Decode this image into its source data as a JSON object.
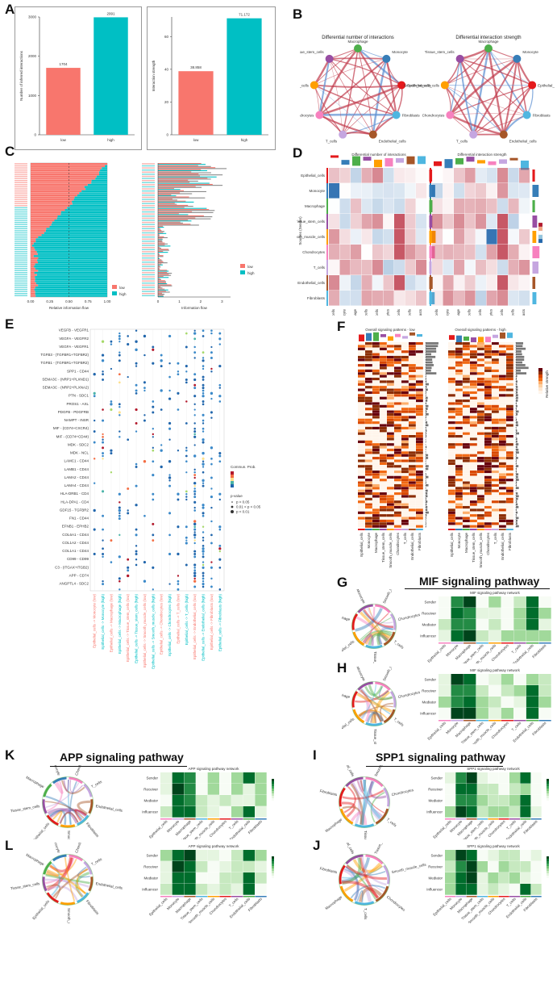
{
  "panels": {
    "A": "A",
    "B": "B",
    "C": "C",
    "D": "D",
    "E": "E",
    "F": "F",
    "G": "G",
    "H": "H",
    "I": "I",
    "J": "J",
    "K": "K",
    "L": "L"
  },
  "chart_data": [
    {
      "id": "A-left",
      "type": "bar",
      "categories": [
        "low",
        "high"
      ],
      "values": [
        1704,
        2991
      ],
      "value_labels": [
        "1704",
        "2991"
      ],
      "ylabel": "Number of inferred interactions",
      "ylim": [
        0,
        3000
      ],
      "yticks": [
        "0",
        "1000",
        "2000",
        "3000"
      ],
      "colors": [
        "#f8766d",
        "#00bfc4"
      ]
    },
    {
      "id": "A-right",
      "type": "bar",
      "categories": [
        "low",
        "high"
      ],
      "values": [
        38.858,
        71.172
      ],
      "value_labels": [
        "38.858",
        "71.172"
      ],
      "ylabel": "Interaction strength",
      "ylim": [
        0,
        72
      ],
      "yticks": [
        "0",
        "20",
        "40",
        "60"
      ],
      "colors": [
        "#f8766d",
        "#00bfc4"
      ]
    }
  ],
  "B": {
    "left_title": "Differential number of interactions",
    "right_title": "Differential interaction strength",
    "nodes": [
      {
        "label": "Macrophage",
        "color": "#4daf4a"
      },
      {
        "label": "Monocyte",
        "color": "#377eb8"
      },
      {
        "label": "Epithelial_cells",
        "color": "#e41a1c"
      },
      {
        "label": "Fibroblasts",
        "color": "#4fb6e0"
      },
      {
        "label": "Endothelial_cells",
        "color": "#a65628"
      },
      {
        "label": "T_cells",
        "color": "#c5a6e0"
      },
      {
        "label": "Chondrocytes",
        "color": "#f781bf"
      },
      {
        "label": "Smooth_muscle_cells",
        "color": "#ff9f00"
      },
      {
        "label": "Tissue_stem_cells",
        "color": "#984ea3"
      }
    ]
  },
  "C": {
    "xlabel_left": "Relative information flow",
    "xlabel_right": "Information flow",
    "xticks_left": [
      "0.00",
      "0.25",
      "0.50",
      "0.75",
      "1.00"
    ],
    "xticks_right": [
      "0",
      "1",
      "2",
      "3"
    ],
    "legend": [
      {
        "label": "low",
        "color": "#f8766d"
      },
      {
        "label": "high",
        "color": "#00bfc4"
      }
    ]
  },
  "D": {
    "left_title": "Differential number of interactions",
    "right_title": "Differential interaction strength",
    "ylabel": "Sources (Sender)",
    "rows": [
      "Epithelial_cells",
      "Monocyte",
      "Macrophage",
      "Tissue_stem_cells",
      "Smooth_muscle_cells",
      "Chondrocytes",
      "T_cells",
      "Endothelial_cells",
      "Fibroblasts"
    ],
    "cols": [
      "Epithelial_cells",
      "Monocyte",
      "Macrophage",
      "Tissue_stem_cells",
      "Smooth_muscle_cells",
      "Chondrocytes",
      "T_cells",
      "Endothelial_cells",
      "Fibroblasts"
    ]
  },
  "E": {
    "legend_title": "Commun. Prob.",
    "pvalue_title": "p-value",
    "pvalue_items": [
      "p > 0.05",
      "0.01 < p < 0.05",
      "p < 0.01"
    ],
    "ylabels": [
      "VEGFB - VEGFR1",
      "VEGFA - VEGFR2",
      "VEGFA - VEGFR1",
      "TGFB3 - (TGFBR1+TGFBR2)",
      "TGFB1 - (TGFBR1+TGFBR2)",
      "SPP1 - CD44",
      "SEMA3C - (NRP1+PLXND1)",
      "SEMA3C - (NRP2+PLXNA2)",
      "PTN - SDC1",
      "PROS1 - AXL",
      "PDGFB - PDGFRB",
      "NAMPT - INSR",
      "MIF - (CD74+CXCR4)",
      "MIF - (CD74+CD44)",
      "MDK - SDC2",
      "MDK - NCL",
      "MDK - (ITGA6+ITGB1)",
      "LAMC1 - CD44",
      "LAMB1 - CD44",
      "LAMA2 - CD44",
      "LAMA4 - CD44",
      "HLA-DRB1 - CD4",
      "HLA-DPA1 - CD4",
      "GDF15 - TGFBR2",
      "FN1 - CD44",
      "EFNB1 - EPHB2",
      "COL6A1 - CD44",
      "COL1A2 - CD44",
      "COL1A1 - CD44",
      "CD99 - CD99",
      "C3 - (ITGAX+ITGB2)",
      "APP - CD74",
      "ANGPTL4 - SDC2",
      "ADM - CALCRL"
    ],
    "xlabels": [
      {
        "text": "Epithelial_cells -> Monocyte (low)",
        "group": "low"
      },
      {
        "text": "Epithelial_cells -> Monocyte (high)",
        "group": "high"
      },
      {
        "text": "Epithelial_cells -> Macrophage (low)",
        "group": "low"
      },
      {
        "text": "Epithelial_cells -> Macrophage (high)",
        "group": "high"
      },
      {
        "text": "Epithelial_cells -> Tissue_stem_cells (low)",
        "group": "low"
      },
      {
        "text": "Epithelial_cells -> Tissue_stem_cells (high)",
        "group": "high"
      },
      {
        "text": "Epithelial_cells -> Smooth_muscle_cells (low)",
        "group": "low"
      },
      {
        "text": "Epithelial_cells -> Smooth_muscle_cells (high)",
        "group": "high"
      },
      {
        "text": "Epithelial_cells -> Chondrocytes (low)",
        "group": "low"
      },
      {
        "text": "Epithelial_cells -> Chondrocytes (high)",
        "group": "high"
      },
      {
        "text": "Epithelial_cells -> T_cells (low)",
        "group": "low"
      },
      {
        "text": "Epithelial_cells -> T_cells (high)",
        "group": "high"
      },
      {
        "text": "Epithelial_cells -> Endothelial_cells (low)",
        "group": "low"
      },
      {
        "text": "Epithelial_cells -> Endothelial_cells (high)",
        "group": "high"
      },
      {
        "text": "Epithelial_cells -> Fibroblasts (low)",
        "group": "low"
      },
      {
        "text": "Epithelial_cells -> Fibroblasts (high)",
        "group": "high"
      }
    ]
  },
  "F": {
    "left_title": "Overall signaling patterns - low",
    "right_title": "Overall signaling patterns - high",
    "legend_title": "Relative strength",
    "cols": [
      "Epithelial_cells",
      "Monocyte",
      "Macrophage",
      "Tissue_stem_cells",
      "Smooth_muscle_cells",
      "Chondrocytes",
      "T_cells",
      "Endothelial_cells",
      "Fibroblasts"
    ]
  },
  "G": {
    "title": "MIF signaling pathway",
    "network_title": "MIF signaling pathway network"
  },
  "H": {
    "network_title": "MIF signaling pathway network"
  },
  "I": {
    "title": "SPP1 signaling pathway",
    "network_title": "SPP1 signaling pathway network"
  },
  "J": {
    "network_title": "SPP1 signaling pathway network"
  },
  "K": {
    "title": "APP signaling pathway",
    "network_title": "APP signaling pathway network"
  },
  "L": {
    "network_title": "APP signaling pathway network"
  },
  "role_rows": [
    "Sender",
    "Receiver",
    "Mediator",
    "Influencer"
  ],
  "role_cols": [
    "Epithelial_cells",
    "Monocyte",
    "Macrophage",
    "Tissue_stem_cells",
    "Smooth_muscle_cells",
    "Chondrocytes",
    "T_cells",
    "Endothelial_cells",
    "Fibroblasts"
  ],
  "chord_labels": {
    "G": [
      "Smooth_muscle_cells",
      "Chondrocytes",
      "T_cells",
      "Tissue_stem_cells",
      "Epithelial_cells",
      "Macrophage",
      "Monocyte"
    ],
    "H": [
      "Smooth_muscle_cells",
      "Chondrocytes",
      "T_cells",
      "Tissue_stem_cells",
      "Epithelial_cells",
      "Macrophage",
      "Monocyte"
    ],
    "I": [
      "Smooth_muscle_cells",
      "Chondrocytes",
      "T_cells",
      "Tissue_stem_cells",
      "Macrophage",
      "Fibroblasts",
      "Epithelial_cells"
    ],
    "J": [
      "Tissue_stem_cells",
      "Smooth_muscle_cells",
      "Chondrocytes",
      "T_cells",
      "Macrophage",
      "Fibroblasts",
      "Epithelial_cells"
    ],
    "K": [
      "Chondrocytes",
      "T_cells",
      "Endothelial_cells",
      "Fibroblasts",
      "Smooth_muscle_cells",
      "Epithelial_cells",
      "Tissue_stem_cells",
      "Macrophage",
      "Monocyte"
    ],
    "L": [
      "Chondrocytes",
      "T_cells",
      "Endothelial_cells",
      "Fibroblasts",
      "Smooth_muscle_cells",
      "Epithelial_cells",
      "Tissue_stem_cells",
      "Macrophage",
      "Monocyte"
    ]
  },
  "colors": {
    "low": "#f8766d",
    "high": "#00bfc4",
    "red": "#b2182b",
    "blue": "#2166ac",
    "green": "#00441b"
  }
}
